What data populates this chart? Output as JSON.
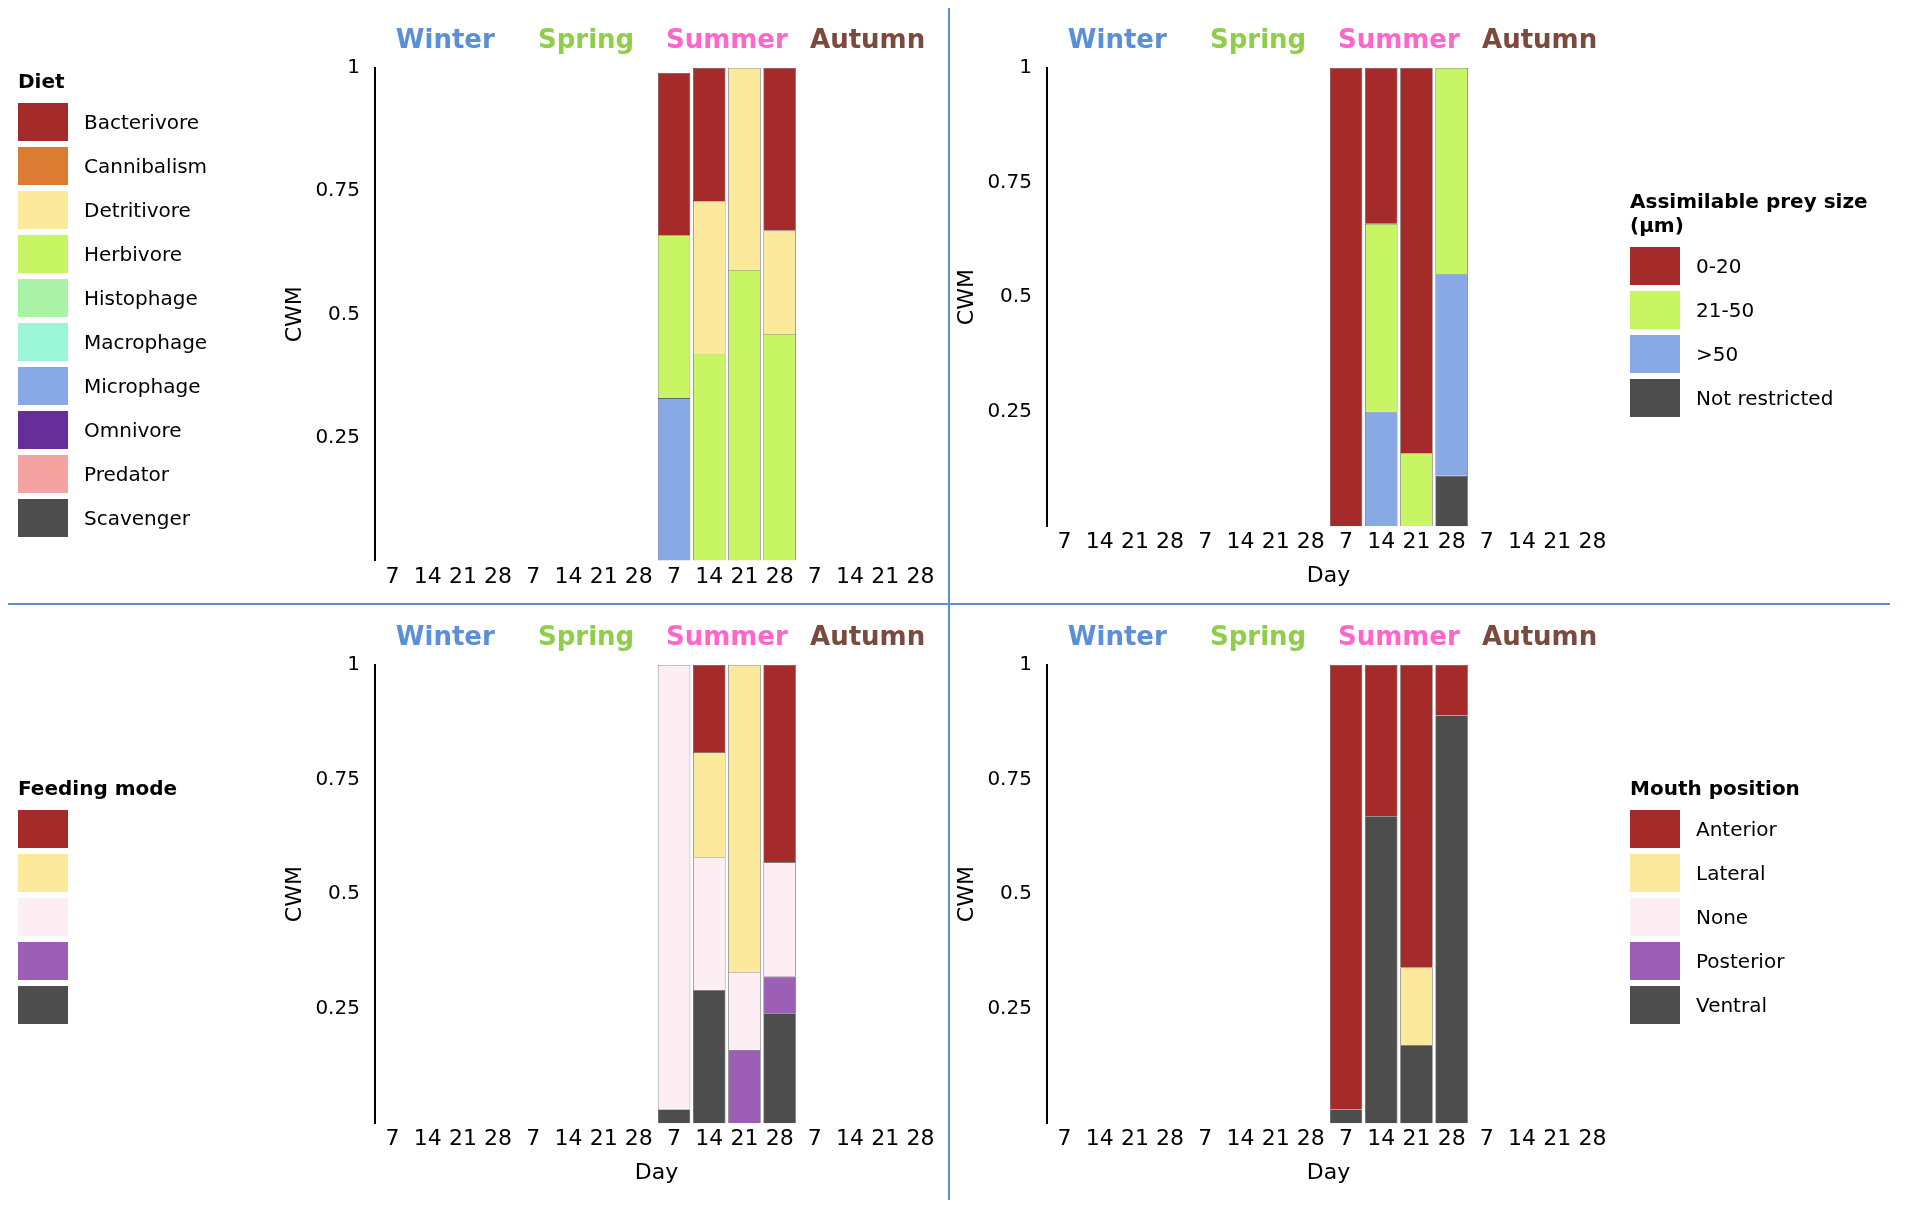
{
  "chart_data": [
    {
      "type": "bar",
      "stacked": true,
      "ylabel": "CWM",
      "legend_title": "Diet",
      "legend": "left",
      "annotations": [
        "Winter",
        "Spring",
        "Summer",
        "Autumn"
      ],
      "categories": [
        "7",
        "14",
        "21",
        "28",
        "7",
        "14",
        "21",
        "28",
        "7",
        "14",
        "21",
        "28",
        "7",
        "14",
        "21",
        "28"
      ],
      "ylim": [
        0,
        1
      ],
      "yticks": [
        0.25,
        0.5,
        0.75,
        1
      ],
      "grid": false,
      "series": [
        {
          "name": "Scavenger",
          "color": "#4d4d4d",
          "values": [
            null,
            null,
            null,
            null,
            null,
            null,
            null,
            null,
            null,
            null,
            null,
            null,
            null,
            null,
            null,
            null
          ]
        },
        {
          "name": "Predator",
          "color": "#f5a3a0",
          "values": [
            null,
            null,
            null,
            null,
            null,
            null,
            null,
            null,
            null,
            null,
            null,
            null,
            null,
            null,
            null,
            null
          ]
        },
        {
          "name": "Omnivore",
          "color": "#662e99",
          "values": [
            null,
            null,
            null,
            null,
            null,
            null,
            null,
            null,
            null,
            null,
            null,
            null,
            null,
            null,
            null,
            null
          ]
        },
        {
          "name": "Microphage",
          "color": "#88a8e6",
          "values": [
            null,
            null,
            null,
            null,
            null,
            null,
            null,
            null,
            0.33,
            null,
            null,
            null,
            null,
            null,
            null,
            null
          ]
        },
        {
          "name": "Macrophage",
          "color": "#9cf7d9",
          "values": [
            null,
            null,
            null,
            null,
            null,
            null,
            null,
            null,
            null,
            null,
            null,
            null,
            null,
            null,
            null,
            null
          ]
        },
        {
          "name": "Histophage",
          "color": "#a9f2a6",
          "values": [
            null,
            null,
            null,
            null,
            null,
            null,
            null,
            null,
            null,
            null,
            null,
            null,
            null,
            null,
            null,
            null
          ]
        },
        {
          "name": "Herbivore",
          "color": "#c8f563",
          "values": [
            null,
            null,
            null,
            null,
            null,
            null,
            null,
            null,
            0.33,
            0.42,
            0.59,
            0.46,
            null,
            null,
            null,
            null
          ]
        },
        {
          "name": "Detritivore",
          "color": "#fde99b",
          "values": [
            null,
            null,
            null,
            null,
            null,
            null,
            null,
            null,
            null,
            0.31,
            0.41,
            0.21,
            null,
            null,
            null,
            null
          ]
        },
        {
          "name": "Cannibalism",
          "color": "#db7c32",
          "values": [
            null,
            null,
            null,
            null,
            null,
            null,
            null,
            null,
            null,
            null,
            null,
            null,
            null,
            null,
            null,
            null
          ]
        },
        {
          "name": "Bacterivore",
          "color": "#a52a2a",
          "values": [
            null,
            null,
            null,
            null,
            null,
            null,
            null,
            null,
            0.33,
            0.27,
            null,
            0.33,
            null,
            null,
            null,
            null
          ]
        }
      ]
    },
    {
      "type": "bar",
      "stacked": true,
      "ylabel": "CWM",
      "xlabel": "Day",
      "legend_title": "Assimilable prey size (µm)",
      "legend": "right",
      "annotations": [
        "Winter",
        "Spring",
        "Summer",
        "Autumn"
      ],
      "categories": [
        "7",
        "14",
        "21",
        "28",
        "7",
        "14",
        "21",
        "28",
        "7",
        "14",
        "21",
        "28",
        "7",
        "14",
        "21",
        "28"
      ],
      "ylim": [
        0,
        1
      ],
      "yticks": [
        0.25,
        0.5,
        0.75,
        1
      ],
      "grid": false,
      "series": [
        {
          "name": "Not restricted",
          "color": "#4d4d4d",
          "values": [
            null,
            null,
            null,
            null,
            null,
            null,
            null,
            null,
            null,
            null,
            null,
            0.11,
            null,
            null,
            null,
            null
          ]
        },
        {
          "name": ">50",
          "color": "#88a8e6",
          "values": [
            null,
            null,
            null,
            null,
            null,
            null,
            null,
            null,
            null,
            0.25,
            null,
            0.44,
            null,
            null,
            null,
            null
          ]
        },
        {
          "name": "21-50",
          "color": "#c8f563",
          "values": [
            null,
            null,
            null,
            null,
            null,
            null,
            null,
            null,
            null,
            0.41,
            0.16,
            0.45,
            null,
            null,
            null,
            null
          ]
        },
        {
          "name": "0-20",
          "color": "#a52a2a",
          "values": [
            null,
            null,
            null,
            null,
            null,
            null,
            null,
            null,
            1,
            0.34,
            0.84,
            null,
            null,
            null,
            null,
            null
          ]
        }
      ]
    },
    {
      "type": "bar",
      "stacked": true,
      "ylabel": "CWM",
      "xlabel": "Day",
      "legend_title": "Feeding mode",
      "legend": "left",
      "annotations": [
        "Winter",
        "Spring",
        "Summer",
        "Autumn"
      ],
      "categories": [
        "7",
        "14",
        "21",
        "28",
        "7",
        "14",
        "21",
        "28",
        "7",
        "14",
        "21",
        "28",
        "7",
        "14",
        "21",
        "28"
      ],
      "ylim": [
        0,
        1
      ],
      "yticks": [
        0.25,
        0.5,
        0.75,
        1
      ],
      "grid": false,
      "series": [
        {
          "color": "#4d4d4d",
          "values": [
            null,
            null,
            null,
            null,
            null,
            null,
            null,
            null,
            0.03,
            0.29,
            null,
            0.24,
            null,
            null,
            null,
            null
          ]
        },
        {
          "color": "#9b5fb5",
          "values": [
            null,
            null,
            null,
            null,
            null,
            null,
            null,
            null,
            null,
            null,
            0.16,
            0.08,
            null,
            null,
            null,
            null
          ]
        },
        {
          "color": "#fdeef3",
          "values": [
            null,
            null,
            null,
            null,
            null,
            null,
            null,
            null,
            0.97,
            0.29,
            0.17,
            0.25,
            null,
            null,
            null,
            null
          ]
        },
        {
          "color": "#fde99b",
          "values": [
            null,
            null,
            null,
            null,
            null,
            null,
            null,
            null,
            null,
            0.23,
            0.67,
            null,
            null,
            null,
            null,
            null
          ]
        },
        {
          "color": "#a52a2a",
          "values": [
            null,
            null,
            null,
            null,
            null,
            null,
            null,
            null,
            null,
            0.19,
            null,
            0.43,
            null,
            null,
            null,
            null
          ]
        }
      ]
    },
    {
      "type": "bar",
      "stacked": true,
      "ylabel": "CWM",
      "xlabel": "Day",
      "legend_title": "Mouth position",
      "legend": "right",
      "annotations": [
        "Winter",
        "Spring",
        "Summer",
        "Autumn"
      ],
      "categories": [
        "7",
        "14",
        "21",
        "28",
        "7",
        "14",
        "21",
        "28",
        "7",
        "14",
        "21",
        "28",
        "7",
        "14",
        "21",
        "28"
      ],
      "ylim": [
        0,
        1
      ],
      "yticks": [
        0.25,
        0.5,
        0.75,
        1
      ],
      "grid": false,
      "series": [
        {
          "name": "Ventral",
          "color": "#4d4d4d",
          "values": [
            null,
            null,
            null,
            null,
            null,
            null,
            null,
            null,
            0.03,
            0.67,
            0.17,
            0.89,
            null,
            null,
            null,
            null
          ]
        },
        {
          "name": "Posterior",
          "color": "#9b5fb5",
          "values": [
            null,
            null,
            null,
            null,
            null,
            null,
            null,
            null,
            null,
            null,
            null,
            null,
            null,
            null,
            null,
            null
          ]
        },
        {
          "name": "None",
          "color": "#fdeef3",
          "values": [
            null,
            null,
            null,
            null,
            null,
            null,
            null,
            null,
            null,
            null,
            null,
            null,
            null,
            null,
            null,
            null
          ]
        },
        {
          "name": "Lateral",
          "color": "#fde99b",
          "values": [
            null,
            null,
            null,
            null,
            null,
            null,
            null,
            null,
            null,
            null,
            0.17,
            null,
            null,
            null,
            null,
            null
          ]
        },
        {
          "name": "Anterior",
          "color": "#a52a2a",
          "values": [
            null,
            null,
            null,
            null,
            null,
            null,
            null,
            null,
            0.97,
            0.33,
            0.66,
            0.11,
            null,
            null,
            null,
            null
          ]
        }
      ]
    }
  ]
}
